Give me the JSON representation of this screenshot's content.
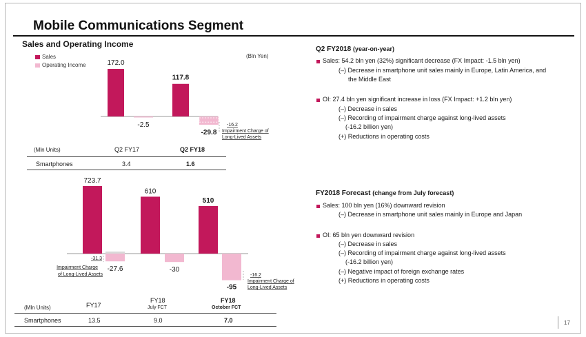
{
  "title": "Mobile Communications Segment",
  "subtitle": "Sales and Operating Income",
  "unit_label": "(Bln Yen)",
  "mln_units": "(Mln Units)",
  "page_number": "17",
  "colors": {
    "sales": "#c2185b",
    "oi": "#f2b8d0",
    "accent": "#c2185b"
  },
  "chart_data": [
    {
      "type": "bar",
      "title": "",
      "categories": [
        "Q2 FY17",
        "Q2 FY18"
      ],
      "series": [
        {
          "name": "Sales",
          "values": [
            172.0,
            117.8
          ]
        },
        {
          "name": "Operating Income",
          "values": [
            -2.5,
            -29.8
          ]
        }
      ],
      "value_labels": {
        "sales": [
          "172.0",
          "117.8"
        ],
        "oi": [
          "-2.5",
          "-29.8"
        ]
      },
      "impairment": {
        "value": -16.2,
        "label": "-16.2",
        "text1": "Impairment Charge of",
        "text2": "Long-Lived Assets"
      },
      "legend": [
        "Sales",
        "Operating Income"
      ],
      "legend_position": "top-left",
      "grid": false
    },
    {
      "type": "bar",
      "title": "",
      "categories": [
        "FY17",
        "FY18 July FCT",
        "FY18 October FCT"
      ],
      "series": [
        {
          "name": "Sales",
          "values": [
            723.7,
            610,
            510
          ]
        },
        {
          "name": "Operating Income",
          "values": [
            -27.6,
            -30,
            -95
          ]
        }
      ],
      "value_labels": {
        "sales": [
          "723.7",
          "610",
          "510"
        ],
        "oi": [
          "-27.6",
          "-30",
          "-95"
        ]
      },
      "impairments": [
        {
          "value": -31.3,
          "label": "-31.3",
          "text1": "Impairment Charge",
          "text2": "of Long-Lived Assets"
        },
        {
          "value": -16.2,
          "label": "-16.2",
          "text1": "Impairment Charge of",
          "text2": "Long-Lived Assets"
        }
      ],
      "grid": false
    }
  ],
  "table1": {
    "col1": "Q2 FY17",
    "col2": "Q2 FY18",
    "row_label": "Smartphones",
    "v1": "3.4",
    "v2": "1.6"
  },
  "table2": {
    "col1": "FY17",
    "col2_line1": "FY18",
    "col2_line2": "July FCT",
    "col3_line1": "FY18",
    "col3_line2": "October FCT",
    "row_label": "Smartphones",
    "v1": "13.5",
    "v2": "9.0",
    "v3": "7.0"
  },
  "q2": {
    "heading": "Q2 FY2018",
    "heading_paren": "(year-on-year)",
    "b1": "Sales: 54.2 bln yen (32%) significant decrease (FX Impact: -1.5 bln yen)",
    "b1_sub1": "(–) Decrease in smartphone unit sales mainly in Europe, Latin America, and",
    "b1_sub2": "the Middle East",
    "b2": "OI: 27.4 bln yen significant increase in loss (FX Impact: +1.2 bln yen)",
    "b2_sub1": "(–) Decrease in sales",
    "b2_sub2": "(–) Recording of impairment charge against long-lived assets",
    "b2_sub3": "(-16.2 billion yen)",
    "b2_sub4": "(+) Reductions in operating costs"
  },
  "fy": {
    "heading": "FY2018 Forecast",
    "heading_paren": "(change from July forecast)",
    "b1": "Sales: 100 bln yen (16%) downward revision",
    "b1_sub1": "(–) Decrease in smartphone unit sales mainly in Europe and Japan",
    "b2": "OI: 65 bln yen downward revision",
    "b2_sub1": "(–) Decrease in sales",
    "b2_sub2": "(–) Recording of impairment charge against long-lived assets",
    "b2_sub3": "(-16.2 billion yen)",
    "b2_sub4": "(–) Negative impact of foreign exchange rates",
    "b2_sub5": "(+) Reductions in operating costs"
  }
}
